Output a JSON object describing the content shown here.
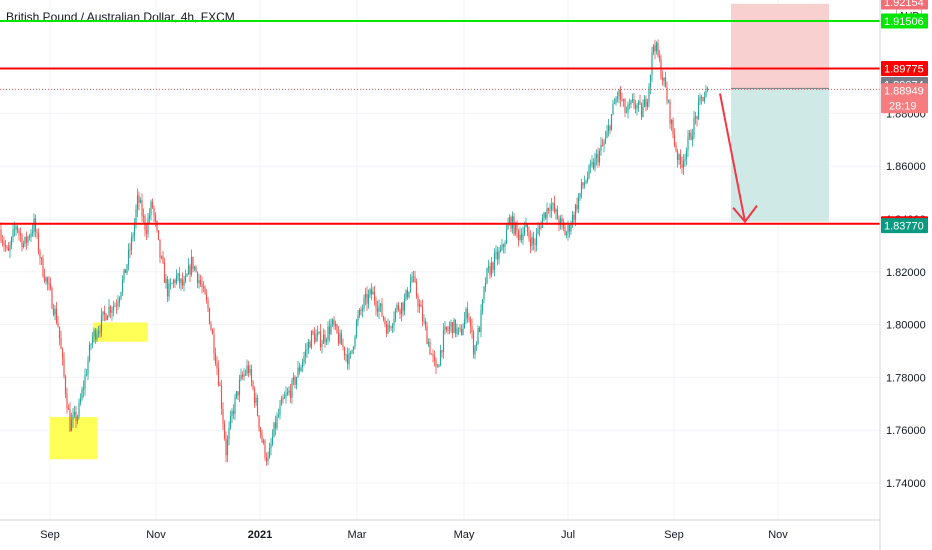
{
  "title": "British Pound / Australian Dollar, 4h, FXCM",
  "currency_button": "AUD",
  "colors": {
    "up": "#26a69a",
    "down": "#ef5350",
    "resistance_line": "#ff0000",
    "top_line": "#00e600",
    "stop_zone": "#f8d0d0",
    "target_zone": "#cfeae6",
    "highlight": "#ffff3b",
    "current_price_tag": "#f77c80",
    "last_close_tag": "#787b86",
    "target_tag": "#089981"
  },
  "chart_data": {
    "type": "candlestick",
    "timeframe": "4h",
    "ylim": [
      1.725,
      1.926
    ],
    "y_ticks": [
      "1.74000",
      "1.76000",
      "1.78000",
      "1.80000",
      "1.82000",
      "1.84000",
      "1.86000",
      "1.88000"
    ],
    "x_ticks": [
      {
        "label": "Sep",
        "bold": false
      },
      {
        "label": "Nov",
        "bold": false
      },
      {
        "label": "2021",
        "bold": true
      },
      {
        "label": "Mar",
        "bold": false
      },
      {
        "label": "May",
        "bold": false
      },
      {
        "label": "Jul",
        "bold": false
      },
      {
        "label": "Sep",
        "bold": false
      },
      {
        "label": "Nov",
        "bold": false
      }
    ],
    "price_path": [
      [
        0,
        1.836
      ],
      [
        8,
        1.826
      ],
      [
        16,
        1.838
      ],
      [
        24,
        1.83
      ],
      [
        34,
        1.838
      ],
      [
        42,
        1.822
      ],
      [
        50,
        1.812
      ],
      [
        58,
        1.8
      ],
      [
        64,
        1.78
      ],
      [
        70,
        1.762
      ],
      [
        78,
        1.766
      ],
      [
        86,
        1.782
      ],
      [
        92,
        1.795
      ],
      [
        100,
        1.8
      ],
      [
        108,
        1.806
      ],
      [
        116,
        1.808
      ],
      [
        124,
        1.818
      ],
      [
        132,
        1.832
      ],
      [
        138,
        1.848
      ],
      [
        146,
        1.836
      ],
      [
        152,
        1.846
      ],
      [
        160,
        1.826
      ],
      [
        168,
        1.812
      ],
      [
        176,
        1.818
      ],
      [
        184,
        1.814
      ],
      [
        192,
        1.824
      ],
      [
        200,
        1.816
      ],
      [
        208,
        1.806
      ],
      [
        214,
        1.792
      ],
      [
        220,
        1.776
      ],
      [
        226,
        1.752
      ],
      [
        232,
        1.766
      ],
      [
        240,
        1.778
      ],
      [
        248,
        1.784
      ],
      [
        256,
        1.77
      ],
      [
        262,
        1.756
      ],
      [
        268,
        1.748
      ],
      [
        274,
        1.76
      ],
      [
        282,
        1.77
      ],
      [
        292,
        1.776
      ],
      [
        302,
        1.786
      ],
      [
        312,
        1.796
      ],
      [
        322,
        1.794
      ],
      [
        332,
        1.8
      ],
      [
        342,
        1.792
      ],
      [
        350,
        1.786
      ],
      [
        356,
        1.8
      ],
      [
        364,
        1.808
      ],
      [
        372,
        1.812
      ],
      [
        380,
        1.806
      ],
      [
        388,
        1.798
      ],
      [
        396,
        1.806
      ],
      [
        404,
        1.808
      ],
      [
        412,
        1.818
      ],
      [
        420,
        1.806
      ],
      [
        428,
        1.794
      ],
      [
        436,
        1.782
      ],
      [
        444,
        1.796
      ],
      [
        452,
        1.8
      ],
      [
        460,
        1.796
      ],
      [
        468,
        1.806
      ],
      [
        474,
        1.79
      ],
      [
        480,
        1.8
      ],
      [
        486,
        1.818
      ],
      [
        494,
        1.824
      ],
      [
        502,
        1.828
      ],
      [
        510,
        1.84
      ],
      [
        518,
        1.834
      ],
      [
        526,
        1.836
      ],
      [
        534,
        1.83
      ],
      [
        542,
        1.84
      ],
      [
        550,
        1.846
      ],
      [
        558,
        1.84
      ],
      [
        566,
        1.834
      ],
      [
        574,
        1.842
      ],
      [
        582,
        1.852
      ],
      [
        590,
        1.858
      ],
      [
        598,
        1.864
      ],
      [
        606,
        1.87
      ],
      [
        612,
        1.88
      ],
      [
        618,
        1.888
      ],
      [
        626,
        1.88
      ],
      [
        634,
        1.884
      ],
      [
        642,
        1.88
      ],
      [
        648,
        1.888
      ],
      [
        654,
        1.908
      ],
      [
        660,
        1.898
      ],
      [
        666,
        1.888
      ],
      [
        674,
        1.87
      ],
      [
        680,
        1.86
      ],
      [
        686,
        1.866
      ],
      [
        694,
        1.876
      ],
      [
        702,
        1.886
      ],
      [
        708,
        1.888
      ]
    ],
    "price_labels": {
      "top_green": "1.91506",
      "top_zone": "1.92154",
      "stop": "1.89775",
      "last_close": "1.89074",
      "current_price": "1.88949",
      "countdown": "28:19",
      "support": "1.83834",
      "target": "1.83770"
    },
    "levels": {
      "top_green": 1.915,
      "stop_red": 1.897,
      "current_dotted": 1.8891,
      "support_red": 1.8382
    },
    "position": {
      "side": "short",
      "stop": 1.9215,
      "entry": 1.8895,
      "target": 1.839
    },
    "highlight_boxes": [
      {
        "low": 1.749,
        "high": 1.765
      },
      {
        "low": 1.7935,
        "high": 1.8008
      }
    ],
    "arrow": {
      "from_price": 1.8875,
      "to_price": 1.839
    }
  }
}
